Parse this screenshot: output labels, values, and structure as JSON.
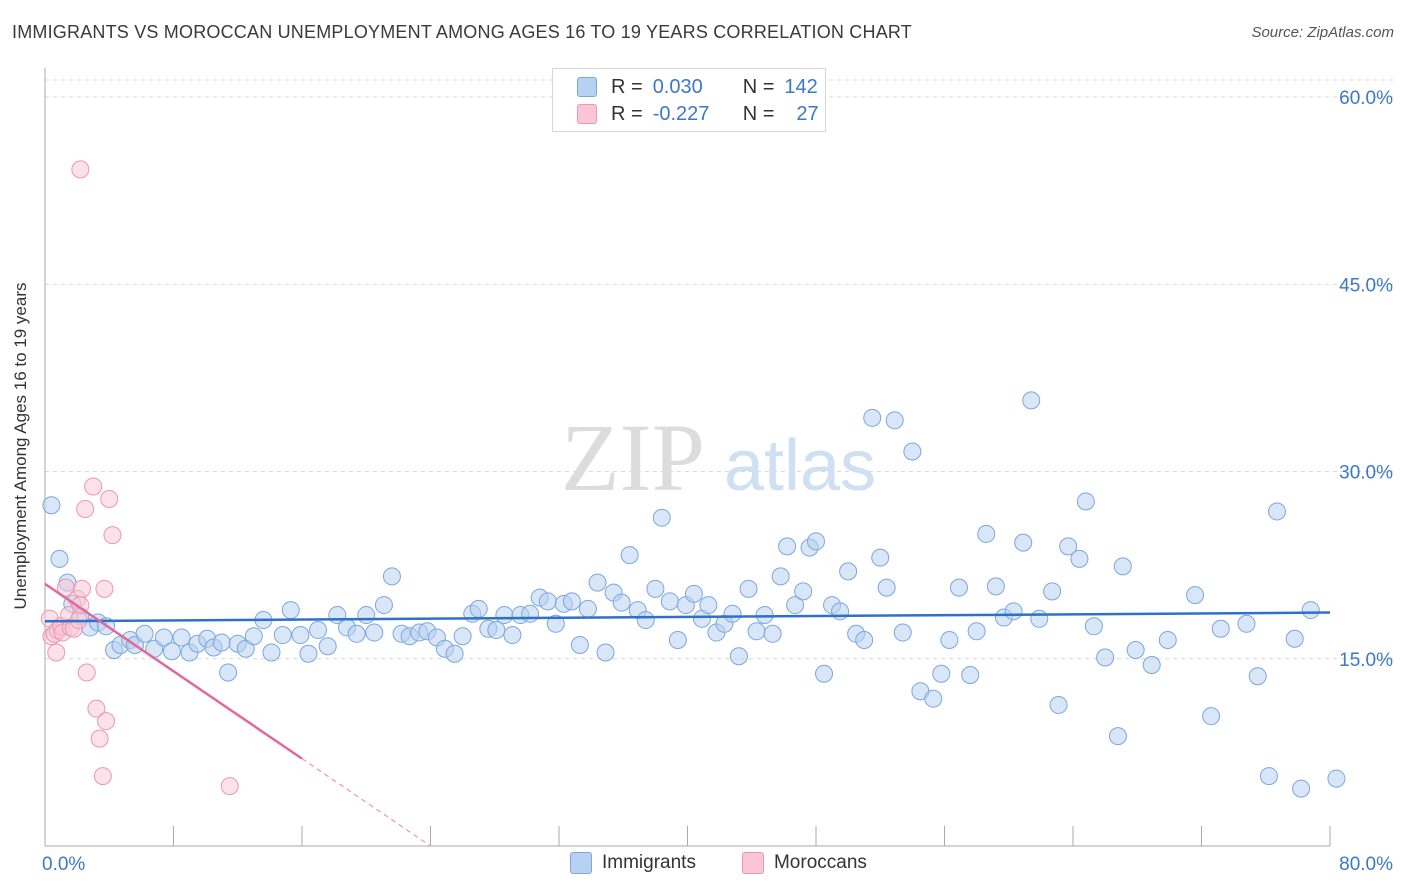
{
  "title": "IMMIGRANTS VS MOROCCAN UNEMPLOYMENT AMONG AGES 16 TO 19 YEARS CORRELATION CHART",
  "source": "Source: ZipAtlas.com",
  "watermark": {
    "zip": "ZIP",
    "atlas": "atlas"
  },
  "legend": {
    "rows": [
      {
        "r_label": "R =",
        "r_value": "0.030",
        "n_label": "N =",
        "n_value": "142"
      },
      {
        "r_label": "R =",
        "r_value": "-0.227",
        "n_label": "N =",
        "n_value": "27"
      }
    ]
  },
  "bottom_legend": {
    "immigrants": "Immigrants",
    "moroccans": "Moroccans"
  },
  "colors": {
    "immigrants_fill": "#b8d1f0",
    "immigrants_stroke": "#7ba7dd",
    "immigrants_line": "#2d72c8",
    "moroccans_fill": "#f8c6d5",
    "moroccans_stroke": "#ee95b1",
    "moroccans_line": "#e2689a",
    "axis_text": "#3b78c9",
    "grid": "#d9d9d9"
  },
  "chart_data": {
    "type": "scatter",
    "title": "IMMIGRANTS VS MOROCCAN UNEMPLOYMENT AMONG AGES 16 TO 19 YEARS CORRELATION CHART",
    "xlabel": "",
    "ylabel": "Unemployment Among Ages 16 to 19 years",
    "xlim": [
      0,
      80
    ],
    "ylim": [
      0,
      60
    ],
    "x_tick_labels": [
      "0.0%",
      "80.0%"
    ],
    "y_ticks": [
      15,
      30,
      45,
      60
    ],
    "y_tick_labels": [
      "15.0%",
      "30.0%",
      "45.0%",
      "60.0%"
    ],
    "grid": true,
    "legend_position": "top-center",
    "series": [
      {
        "name": "Immigrants",
        "r": 0.03,
        "n": 142,
        "trend": {
          "x": [
            0,
            80
          ],
          "y": [
            18.0,
            18.7
          ]
        },
        "points": [
          [
            0.4,
            27.3
          ],
          [
            0.9,
            23.0
          ],
          [
            1.4,
            21.1
          ],
          [
            1.7,
            19.4
          ],
          [
            2.2,
            18.4
          ],
          [
            2.8,
            17.5
          ],
          [
            3.3,
            17.9
          ],
          [
            3.8,
            17.6
          ],
          [
            4.3,
            15.7
          ],
          [
            4.7,
            16.1
          ],
          [
            5.3,
            16.5
          ],
          [
            5.6,
            16.1
          ],
          [
            6.2,
            17.0
          ],
          [
            6.8,
            15.8
          ],
          [
            7.4,
            16.7
          ],
          [
            7.9,
            15.6
          ],
          [
            8.5,
            16.7
          ],
          [
            9.0,
            15.5
          ],
          [
            9.5,
            16.2
          ],
          [
            10.1,
            16.6
          ],
          [
            10.5,
            15.9
          ],
          [
            11.0,
            16.3
          ],
          [
            11.4,
            13.9
          ],
          [
            12.0,
            16.2
          ],
          [
            12.5,
            15.8
          ],
          [
            13.0,
            16.8
          ],
          [
            13.6,
            18.1
          ],
          [
            14.1,
            15.5
          ],
          [
            14.8,
            16.9
          ],
          [
            15.3,
            18.9
          ],
          [
            15.9,
            16.9
          ],
          [
            16.4,
            15.4
          ],
          [
            17.0,
            17.3
          ],
          [
            17.6,
            16.0
          ],
          [
            18.2,
            18.5
          ],
          [
            18.8,
            17.5
          ],
          [
            19.4,
            17.0
          ],
          [
            20.0,
            18.5
          ],
          [
            20.5,
            17.1
          ],
          [
            21.1,
            19.3
          ],
          [
            21.6,
            21.6
          ],
          [
            22.2,
            17.0
          ],
          [
            22.7,
            16.8
          ],
          [
            23.3,
            17.1
          ],
          [
            23.8,
            17.2
          ],
          [
            24.4,
            16.7
          ],
          [
            24.9,
            15.8
          ],
          [
            25.5,
            15.4
          ],
          [
            26.0,
            16.8
          ],
          [
            26.6,
            18.6
          ],
          [
            27.0,
            19.0
          ],
          [
            27.6,
            17.4
          ],
          [
            28.1,
            17.3
          ],
          [
            28.6,
            18.5
          ],
          [
            29.1,
            16.9
          ],
          [
            29.6,
            18.5
          ],
          [
            30.2,
            18.6
          ],
          [
            30.8,
            19.9
          ],
          [
            31.3,
            19.6
          ],
          [
            31.8,
            17.8
          ],
          [
            32.3,
            19.4
          ],
          [
            32.8,
            19.6
          ],
          [
            33.3,
            16.1
          ],
          [
            33.8,
            19.0
          ],
          [
            34.4,
            21.1
          ],
          [
            34.9,
            15.5
          ],
          [
            35.4,
            20.3
          ],
          [
            35.9,
            19.5
          ],
          [
            36.4,
            23.3
          ],
          [
            36.9,
            18.9
          ],
          [
            37.4,
            18.1
          ],
          [
            38.0,
            20.6
          ],
          [
            38.4,
            26.3
          ],
          [
            38.9,
            19.6
          ],
          [
            39.4,
            16.5
          ],
          [
            39.9,
            19.3
          ],
          [
            40.4,
            20.2
          ],
          [
            40.9,
            18.2
          ],
          [
            41.3,
            19.3
          ],
          [
            41.8,
            17.1
          ],
          [
            42.3,
            17.8
          ],
          [
            42.8,
            18.6
          ],
          [
            43.2,
            15.2
          ],
          [
            43.8,
            20.6
          ],
          [
            44.3,
            17.2
          ],
          [
            44.8,
            18.5
          ],
          [
            45.3,
            17.0
          ],
          [
            45.8,
            21.6
          ],
          [
            46.2,
            24.0
          ],
          [
            46.7,
            19.3
          ],
          [
            47.2,
            20.4
          ],
          [
            47.6,
            23.9
          ],
          [
            48.0,
            24.4
          ],
          [
            48.5,
            13.8
          ],
          [
            49.0,
            19.3
          ],
          [
            49.5,
            18.8
          ],
          [
            50.0,
            22.0
          ],
          [
            50.5,
            17.0
          ],
          [
            51.0,
            16.5
          ],
          [
            51.5,
            34.3
          ],
          [
            52.0,
            23.1
          ],
          [
            52.4,
            20.7
          ],
          [
            52.9,
            34.1
          ],
          [
            53.4,
            17.1
          ],
          [
            54.0,
            31.6
          ],
          [
            54.5,
            12.4
          ],
          [
            55.3,
            11.8
          ],
          [
            55.8,
            13.8
          ],
          [
            56.3,
            16.5
          ],
          [
            56.9,
            20.7
          ],
          [
            57.6,
            13.7
          ],
          [
            58.0,
            17.2
          ],
          [
            58.6,
            25.0
          ],
          [
            59.2,
            20.8
          ],
          [
            59.7,
            18.3
          ],
          [
            60.3,
            18.8
          ],
          [
            60.9,
            24.3
          ],
          [
            61.4,
            35.7
          ],
          [
            61.9,
            18.2
          ],
          [
            62.7,
            20.4
          ],
          [
            63.1,
            11.3
          ],
          [
            63.7,
            24.0
          ],
          [
            64.4,
            23.0
          ],
          [
            64.8,
            27.6
          ],
          [
            65.3,
            17.6
          ],
          [
            66.0,
            15.1
          ],
          [
            66.8,
            8.8
          ],
          [
            67.1,
            22.4
          ],
          [
            67.9,
            15.7
          ],
          [
            68.9,
            14.5
          ],
          [
            69.9,
            16.5
          ],
          [
            71.6,
            20.1
          ],
          [
            72.6,
            10.4
          ],
          [
            73.2,
            17.4
          ],
          [
            74.8,
            17.8
          ],
          [
            75.5,
            13.6
          ],
          [
            76.2,
            5.6
          ],
          [
            76.7,
            26.8
          ],
          [
            77.8,
            16.6
          ],
          [
            78.2,
            4.6
          ],
          [
            78.8,
            18.9
          ],
          [
            80.4,
            5.4
          ]
        ]
      },
      {
        "name": "Moroccans",
        "r": -0.227,
        "n": 27,
        "trend": {
          "x": [
            0,
            16
          ],
          "y": [
            21.0,
            7.0
          ]
        },
        "trend_dashed": {
          "x": [
            16,
            28
          ],
          "y": [
            7.0,
            -3.5
          ]
        },
        "points": [
          [
            0.3,
            18.2
          ],
          [
            0.4,
            16.8
          ],
          [
            0.6,
            17.0
          ],
          [
            0.7,
            15.5
          ],
          [
            0.8,
            17.3
          ],
          [
            1.0,
            17.6
          ],
          [
            1.1,
            17.1
          ],
          [
            1.3,
            20.7
          ],
          [
            1.5,
            18.5
          ],
          [
            1.6,
            17.5
          ],
          [
            1.8,
            17.4
          ],
          [
            2.0,
            19.8
          ],
          [
            2.1,
            18.1
          ],
          [
            2.2,
            19.3
          ],
          [
            2.3,
            20.6
          ],
          [
            2.5,
            27.0
          ],
          [
            2.6,
            13.9
          ],
          [
            3.0,
            28.8
          ],
          [
            3.2,
            11.0
          ],
          [
            3.4,
            8.6
          ],
          [
            3.6,
            5.6
          ],
          [
            3.7,
            20.6
          ],
          [
            3.8,
            10.0
          ],
          [
            4.0,
            27.8
          ],
          [
            4.2,
            24.9
          ],
          [
            2.2,
            54.2
          ],
          [
            11.5,
            4.8
          ]
        ]
      }
    ]
  }
}
